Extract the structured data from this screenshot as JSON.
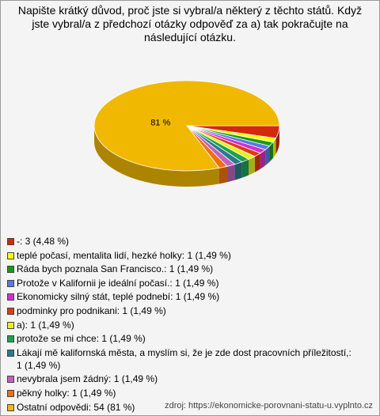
{
  "chart_data": {
    "type": "pie",
    "title": "Napište krátký důvod, proč jste si vybral/a některý z těchto států. Když jste vybral/a z předchozí otázky odpověď za a) tak pokračujte na následující otázku.",
    "categories": [
      "-: 3 (4,48 %)",
      "teplé počasí, mentalita lidí, hezké holky: 1 (1,49 %)",
      "Ráda bych poznala San Francisco.: 1 (1,49 %)",
      "Protože v Kalifornii je ideální počasí.: 1 (1,49 %)",
      "Ekonomicky silný stát, teplé podnebí: 1 (1,49 %)",
      "podminky pro podnikani: 1 (1,49 %)",
      "a): 1 (1,49 %)",
      "protože se mi chce: 1 (1,49 %)",
      "Lákají mě kalifornská města, a myslím si, že je zde dost pracovních příležitostí,: 1 (1,49 %)",
      "nevybrala jsem žádný: 1 (1,49 %)",
      "pěkný holky: 1 (1,49 %)",
      "Ostatní odpovědi: 54 (81 %)"
    ],
    "values": [
      4.48,
      1.49,
      1.49,
      1.49,
      1.49,
      1.49,
      1.49,
      1.49,
      1.49,
      1.49,
      1.49,
      81
    ],
    "value_labels": [
      null,
      null,
      null,
      null,
      null,
      null,
      null,
      null,
      null,
      null,
      null,
      "81 %"
    ],
    "colors": [
      "#d42a0a",
      "#ffff00",
      "#1a9a1a",
      "#5a78e6",
      "#d030d0",
      "#e03a10",
      "#e8f020",
      "#20a050",
      "#2a7a8a",
      "#c060c0",
      "#f07010",
      "#f0b800"
    ],
    "source": "zdroj: https://ekonomicke-porovnani-statu-u.vyplnto.cz"
  }
}
